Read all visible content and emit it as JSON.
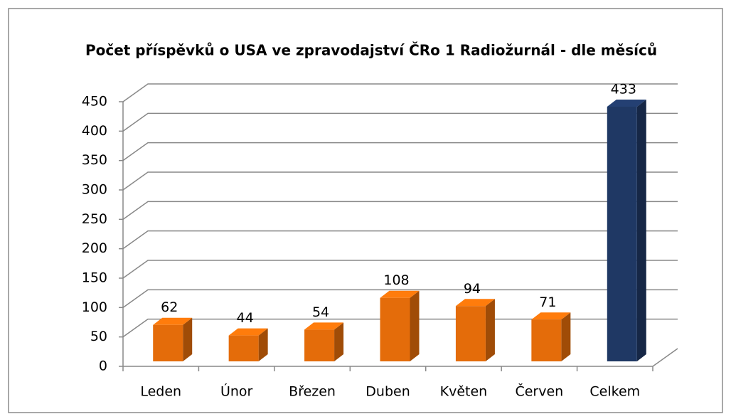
{
  "chart_data": {
    "type": "bar3d",
    "title": "Počet příspěvků o USA  ve zpravodajství ČRo 1 Radiožurnál - dle měsíců",
    "categories": [
      "Leden",
      "Únor",
      "Březen",
      "Duben",
      "Květen",
      "Červen",
      "Celkem"
    ],
    "values": [
      62,
      44,
      54,
      108,
      94,
      71,
      433
    ],
    "colors": [
      "#e46c0a",
      "#e46c0a",
      "#e46c0a",
      "#e46c0a",
      "#e46c0a",
      "#e46c0a",
      "#1f3864"
    ],
    "ylim": [
      0,
      450
    ],
    "yticks": [
      0,
      50,
      100,
      150,
      200,
      250,
      300,
      350,
      400,
      450
    ],
    "grid": true
  }
}
